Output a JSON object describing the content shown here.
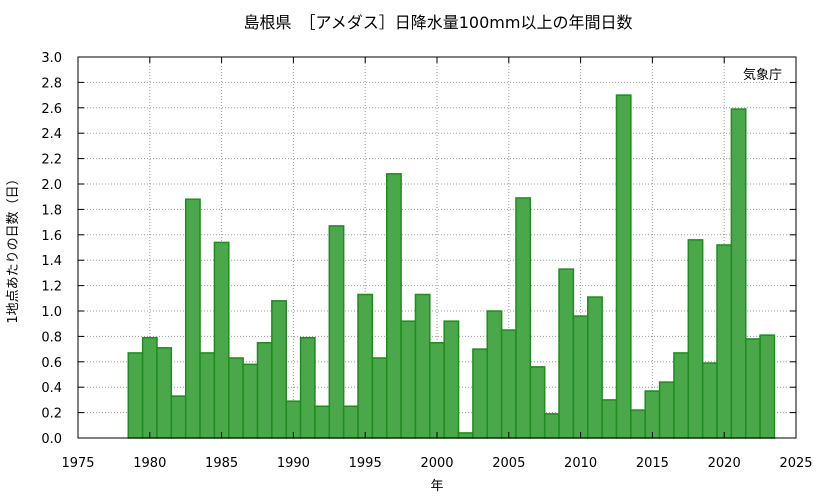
{
  "chart_data": {
    "type": "bar",
    "title": "島根県　［アメダス］日降水量100mm以上の年間日数",
    "xlabel": "年",
    "ylabel": "1地点あたりの日数（日）",
    "annotation": "気象庁",
    "xlim": [
      1975,
      2025
    ],
    "ylim": [
      0,
      3.0
    ],
    "grid": true,
    "bar_color": "#4aa84a",
    "bar_edge_color": "#1e8c1e",
    "xticks": [
      1975,
      1980,
      1985,
      1990,
      1995,
      2000,
      2005,
      2010,
      2015,
      2020,
      2025
    ],
    "yticks": [
      0.0,
      0.2,
      0.4,
      0.6,
      0.8,
      1.0,
      1.2,
      1.4,
      1.6,
      1.8,
      2.0,
      2.2,
      2.4,
      2.6,
      2.8,
      3.0
    ],
    "categories": [
      1979,
      1980,
      1981,
      1982,
      1983,
      1984,
      1985,
      1986,
      1987,
      1988,
      1989,
      1990,
      1991,
      1992,
      1993,
      1994,
      1995,
      1996,
      1997,
      1998,
      1999,
      2000,
      2001,
      2002,
      2003,
      2004,
      2005,
      2006,
      2007,
      2008,
      2009,
      2010,
      2011,
      2012,
      2013,
      2014,
      2015,
      2016,
      2017,
      2018,
      2019,
      2020,
      2021,
      2022,
      2023
    ],
    "values": [
      0.67,
      0.79,
      0.71,
      0.33,
      1.88,
      0.67,
      1.54,
      0.63,
      0.58,
      0.75,
      1.08,
      0.29,
      0.79,
      0.25,
      1.67,
      0.25,
      1.13,
      0.63,
      2.08,
      0.92,
      1.13,
      0.75,
      0.92,
      0.04,
      0.7,
      1.0,
      0.85,
      1.89,
      0.56,
      0.19,
      1.33,
      0.96,
      1.11,
      0.3,
      2.7,
      0.22,
      0.37,
      0.44,
      0.67,
      1.56,
      0.59,
      1.52,
      2.59,
      0.78,
      0.81
    ]
  }
}
